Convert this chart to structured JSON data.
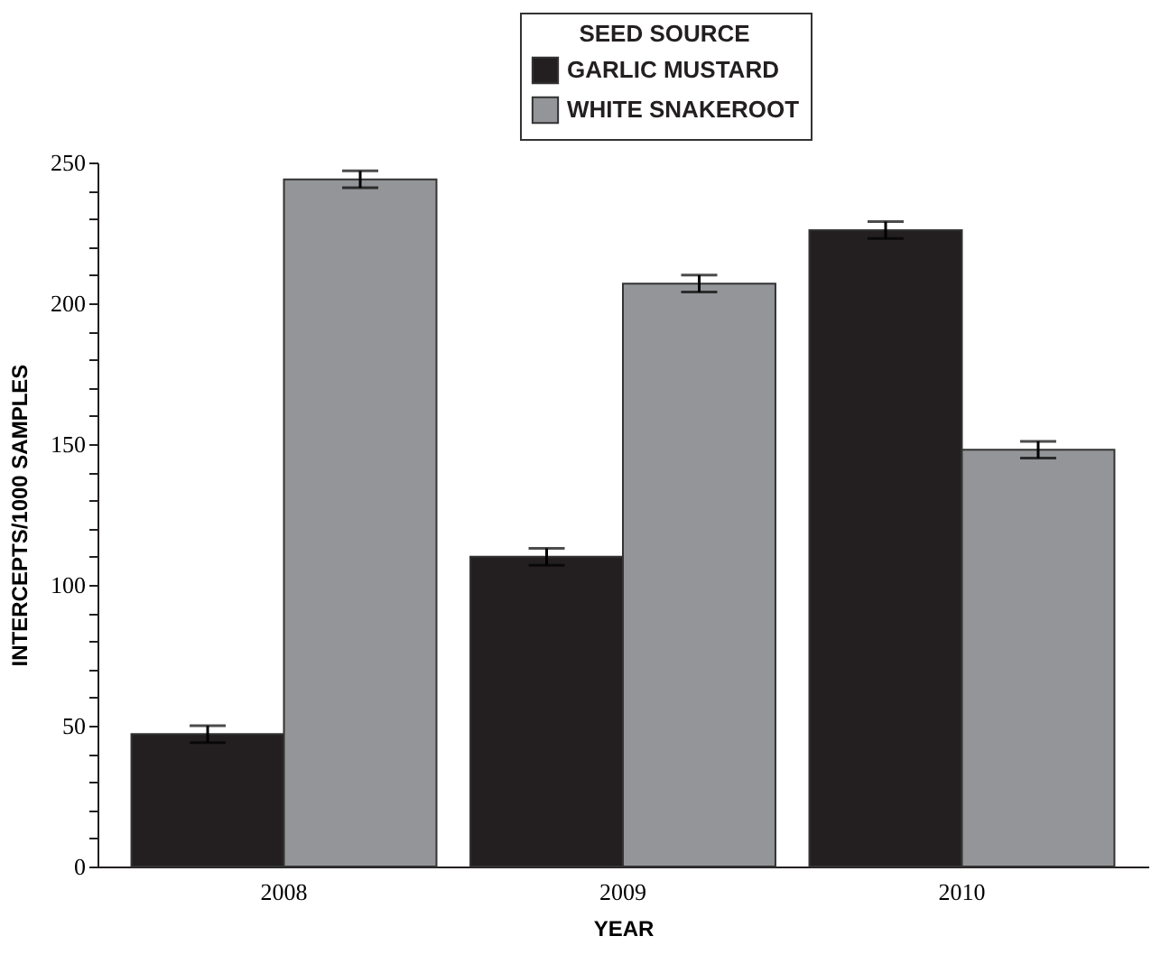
{
  "chart_data": {
    "type": "bar",
    "xlabel": "YEAR",
    "ylabel": "INTERCEPTS/1000 SAMPLES",
    "legend_title": "SEED SOURCE",
    "legend": "top",
    "categories": [
      "2008",
      "2009",
      "2010"
    ],
    "series": [
      {
        "name": "GARLIC MUSTARD",
        "color": "#231f20",
        "values": [
          47,
          110,
          226
        ],
        "errors": [
          3,
          3,
          3
        ]
      },
      {
        "name": "WHITE SNAKEROOT",
        "color": "#939598",
        "values": [
          244,
          207,
          148
        ],
        "errors": [
          3,
          3,
          3
        ]
      }
    ],
    "ylim": [
      0,
      250
    ],
    "yticks": [
      0,
      {
        "value": 10,
        "label": null
      },
      {
        "value": 20,
        "label": null
      },
      {
        "value": 30,
        "label": null
      },
      {
        "value": 40,
        "label": null
      },
      50,
      {
        "value": 60,
        "label": null
      },
      {
        "value": 70,
        "label": null
      },
      {
        "value": 80,
        "label": null
      },
      {
        "value": 90,
        "label": null
      },
      100,
      {
        "value": 110,
        "label": null
      },
      {
        "value": 120,
        "label": null
      },
      {
        "value": 130,
        "label": null
      },
      {
        "value": 140,
        "label": null
      },
      150,
      {
        "value": 160,
        "label": null
      },
      {
        "value": 170,
        "label": null
      },
      {
        "value": 180,
        "label": null
      },
      {
        "value": 190,
        "label": null
      },
      200,
      {
        "value": 210,
        "label": null
      },
      {
        "value": 220,
        "label": null
      },
      {
        "value": 230,
        "label": null
      },
      {
        "value": 240,
        "label": null
      },
      250
    ],
    "grid": false
  }
}
